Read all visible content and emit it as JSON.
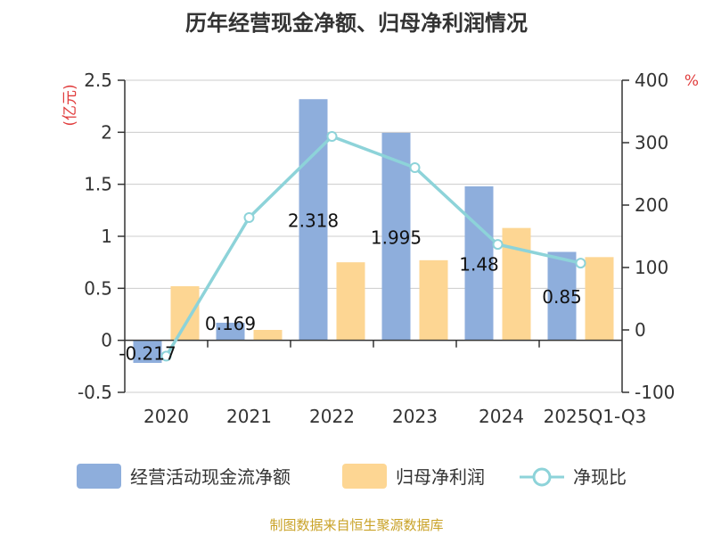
{
  "chart_data": {
    "type": "bar",
    "title": "历年经营现金净额、归母净利润情况",
    "categories": [
      "2020",
      "2021",
      "2022",
      "2023",
      "2024",
      "2025Q1-Q3"
    ],
    "y_left": {
      "unit": "(亿元)",
      "min": -0.5,
      "max": 2.5,
      "ticks": [
        "2.5",
        "2",
        "1.5",
        "1",
        "0.5",
        "0",
        "-0.5"
      ]
    },
    "y_right": {
      "unit": "%",
      "min": -100,
      "max": 400,
      "ticks": [
        "400",
        "300",
        "200",
        "100",
        "0",
        "-100"
      ]
    },
    "series": [
      {
        "name": "经营活动现金流净额",
        "kind": "bar",
        "axis": "left",
        "color": "#8eaedc",
        "values": [
          -0.217,
          0.169,
          2.318,
          1.995,
          1.48,
          0.85
        ],
        "labels": [
          "-0.217",
          "0.169",
          "2.318",
          "1.995",
          "1.48",
          "0.85"
        ]
      },
      {
        "name": "归母净利润",
        "kind": "bar",
        "axis": "left",
        "color": "#fdd693",
        "values": [
          0.52,
          0.1,
          0.75,
          0.77,
          1.08,
          0.8
        ]
      },
      {
        "name": "净现比",
        "kind": "line",
        "axis": "right",
        "color": "#8dd3d9",
        "values": [
          -42,
          180,
          310,
          260,
          137,
          107
        ]
      }
    ],
    "grid": true,
    "legend": "bottom"
  },
  "source": "制图数据来自恒生聚源数据库"
}
